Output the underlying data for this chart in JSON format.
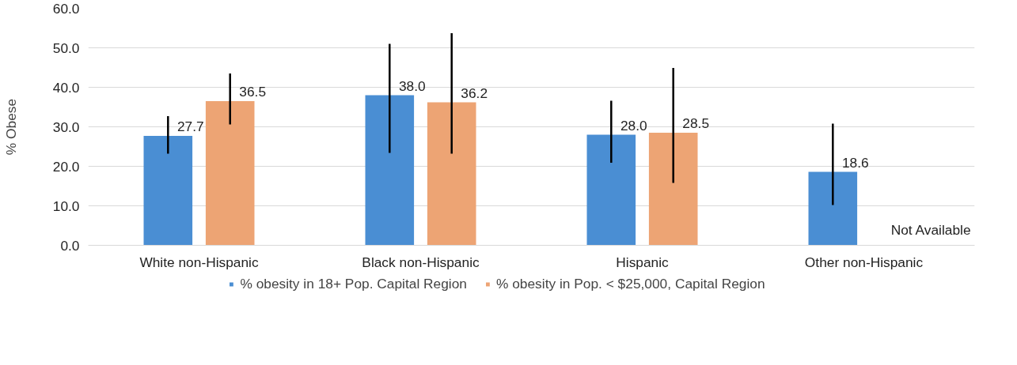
{
  "chart_data": {
    "type": "bar",
    "ylabel": "% Obese",
    "categories": [
      "White non-Hispanic",
      "Black non-Hispanic",
      "Hispanic",
      "Other non-Hispanic"
    ],
    "series": [
      {
        "name": "% obesity in 18+ Pop. Capital Region",
        "color": "#4a8ed3",
        "values": [
          27.7,
          38.0,
          28.0,
          18.6
        ],
        "value_labels": [
          "27.7",
          "38.0",
          "28.0",
          "18.6"
        ],
        "errors": [
          [
            23.2,
            32.7
          ],
          [
            23.4,
            51.0
          ],
          [
            20.9,
            36.6
          ],
          [
            10.2,
            30.8
          ]
        ]
      },
      {
        "name": "% obesity in Pop. < $25,000, Capital Region",
        "color": "#eda474",
        "values": [
          36.5,
          36.2,
          28.5,
          null
        ],
        "value_labels": [
          "36.5",
          "36.2",
          "28.5",
          null
        ],
        "errors": [
          [
            30.6,
            43.5
          ],
          [
            23.2,
            53.7
          ],
          [
            15.8,
            44.9
          ],
          null
        ]
      }
    ],
    "ylim": [
      0,
      60
    ],
    "yticks": [
      {
        "value": 0,
        "label": "0.0"
      },
      {
        "value": 10,
        "label": "10.0"
      },
      {
        "value": 20,
        "label": "20.0"
      },
      {
        "value": 30,
        "label": "30.0"
      },
      {
        "value": 40,
        "label": "40.0"
      },
      {
        "value": 50,
        "label": "50.0"
      },
      {
        "value": 60,
        "label": "60.0"
      }
    ],
    "grid": "y",
    "legend": "bottom",
    "annotations": [
      "Not Available"
    ]
  }
}
